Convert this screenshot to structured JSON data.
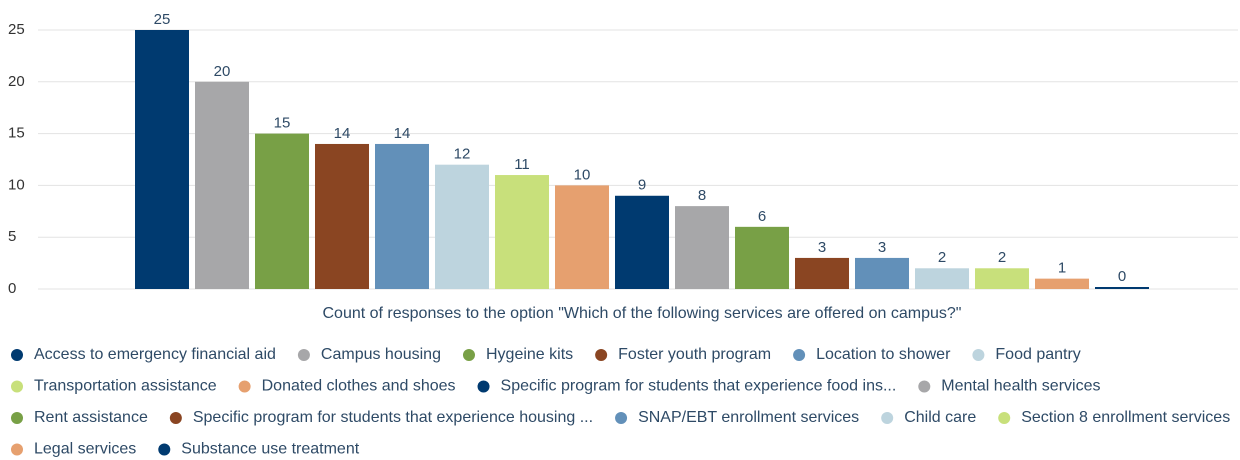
{
  "chart_data": {
    "type": "bar",
    "x_label": "Count of responses to the option \"Which of the following services are offered on campus?\"",
    "categories": [
      "Access to emergency financial aid",
      "Campus housing",
      "Hygeine kits",
      "Foster youth program",
      "Location to shower",
      "Food pantry",
      "Transportation assistance",
      "Donated clothes and shoes",
      "Specific program for students that experience food ins...",
      "Mental health services",
      "Rent assistance",
      "Specific program for students that experience housing ...",
      "SNAP/EBT enrollment services",
      "Child care",
      "Section 8 enrollment services",
      "Legal services",
      "Substance use treatment"
    ],
    "values": [
      25,
      20,
      15,
      14,
      14,
      12,
      11,
      10,
      9,
      8,
      6,
      3,
      3,
      2,
      2,
      1,
      0
    ],
    "colors": [
      "#003a70",
      "#a7a7a9",
      "#78a046",
      "#8a4522",
      "#6290b9",
      "#bdd4de",
      "#c8e07b",
      "#e6a06f",
      "#003a70",
      "#a7a7a9",
      "#78a046",
      "#8a4522",
      "#6290b9",
      "#bdd4de",
      "#c8e07b",
      "#e6a06f",
      "#003a70"
    ],
    "ylim": [
      0,
      25
    ],
    "yticks": [
      0,
      5,
      10,
      15,
      20,
      25
    ],
    "grid": true,
    "legend": "bottom"
  }
}
